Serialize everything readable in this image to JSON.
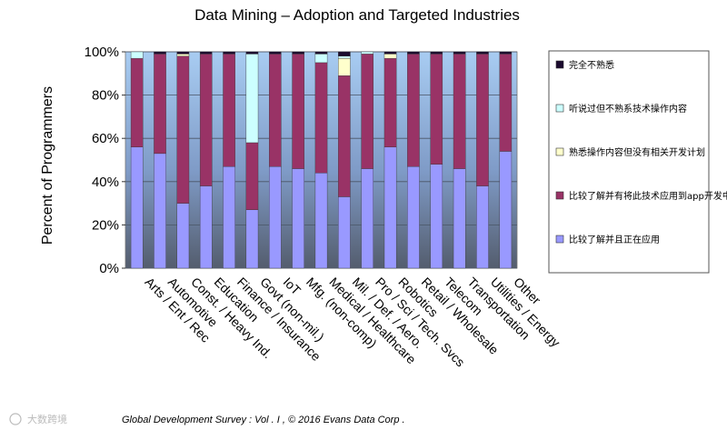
{
  "chart_data": {
    "type": "bar",
    "stacked": true,
    "title": "Data Mining – Adoption and Targeted Industries",
    "ylabel": "Percent of Programmers",
    "xlabel": "",
    "ylim": [
      0,
      100
    ],
    "yticks": [
      "0%",
      "20%",
      "40%",
      "60%",
      "80%",
      "100%"
    ],
    "grid": true,
    "legend_position": "right",
    "categories": [
      "Arts / Ent / Rec",
      "Automotive",
      "Const. / Heavy Ind.",
      "Education",
      "Finance / Insurance",
      "Govt (non-mil.)",
      "IoT",
      "Mfg. (non-comp)",
      "Medical / Healthcare",
      "Mil. / Def. / Aero.",
      "Pro / Sci / Tech. Svcs",
      "Robotics",
      "Retail / Wholesale",
      "Telecom",
      "Transportation",
      "Utilities / Energy",
      "Other"
    ],
    "series": [
      {
        "name": "比较了解并且正在应用",
        "color": "#9999ff",
        "values": [
          56,
          53,
          30,
          38,
          47,
          27,
          47,
          46,
          44,
          33,
          46,
          56,
          47,
          48,
          46,
          38,
          54
        ]
      },
      {
        "name": "比较了解并有将此技术应用到app开发中的计划",
        "color": "#993366",
        "values": [
          41,
          46,
          68,
          61,
          52,
          31,
          52,
          53,
          51,
          56,
          53,
          41,
          52,
          51,
          53,
          61,
          45
        ]
      },
      {
        "name": "熟悉操作内容但没有相关开发计划",
        "color": "#ffffcc",
        "values": [
          0,
          0,
          1,
          0,
          0,
          0,
          0,
          0,
          0,
          8,
          0,
          2,
          0,
          0,
          0,
          0,
          0
        ]
      },
      {
        "name": "听说过但不熟系技术操作内容",
        "color": "#ccffff",
        "values": [
          3,
          0,
          0,
          0,
          0,
          41,
          0,
          0,
          4,
          1,
          1,
          0,
          0,
          0,
          0,
          0,
          0
        ]
      },
      {
        "name": "完全不熟悉",
        "color": "#1a0a2e",
        "values": [
          0,
          1,
          1,
          1,
          1,
          1,
          1,
          1,
          1,
          2,
          0,
          1,
          1,
          1,
          1,
          1,
          1
        ]
      }
    ],
    "legend_order": [
      4,
      3,
      2,
      1,
      0
    ]
  },
  "footer": {
    "text": "Global Development Survey :  Vol . I , © 2016  Evans Data Corp ."
  },
  "watermark": {
    "text": "大数跨境"
  }
}
